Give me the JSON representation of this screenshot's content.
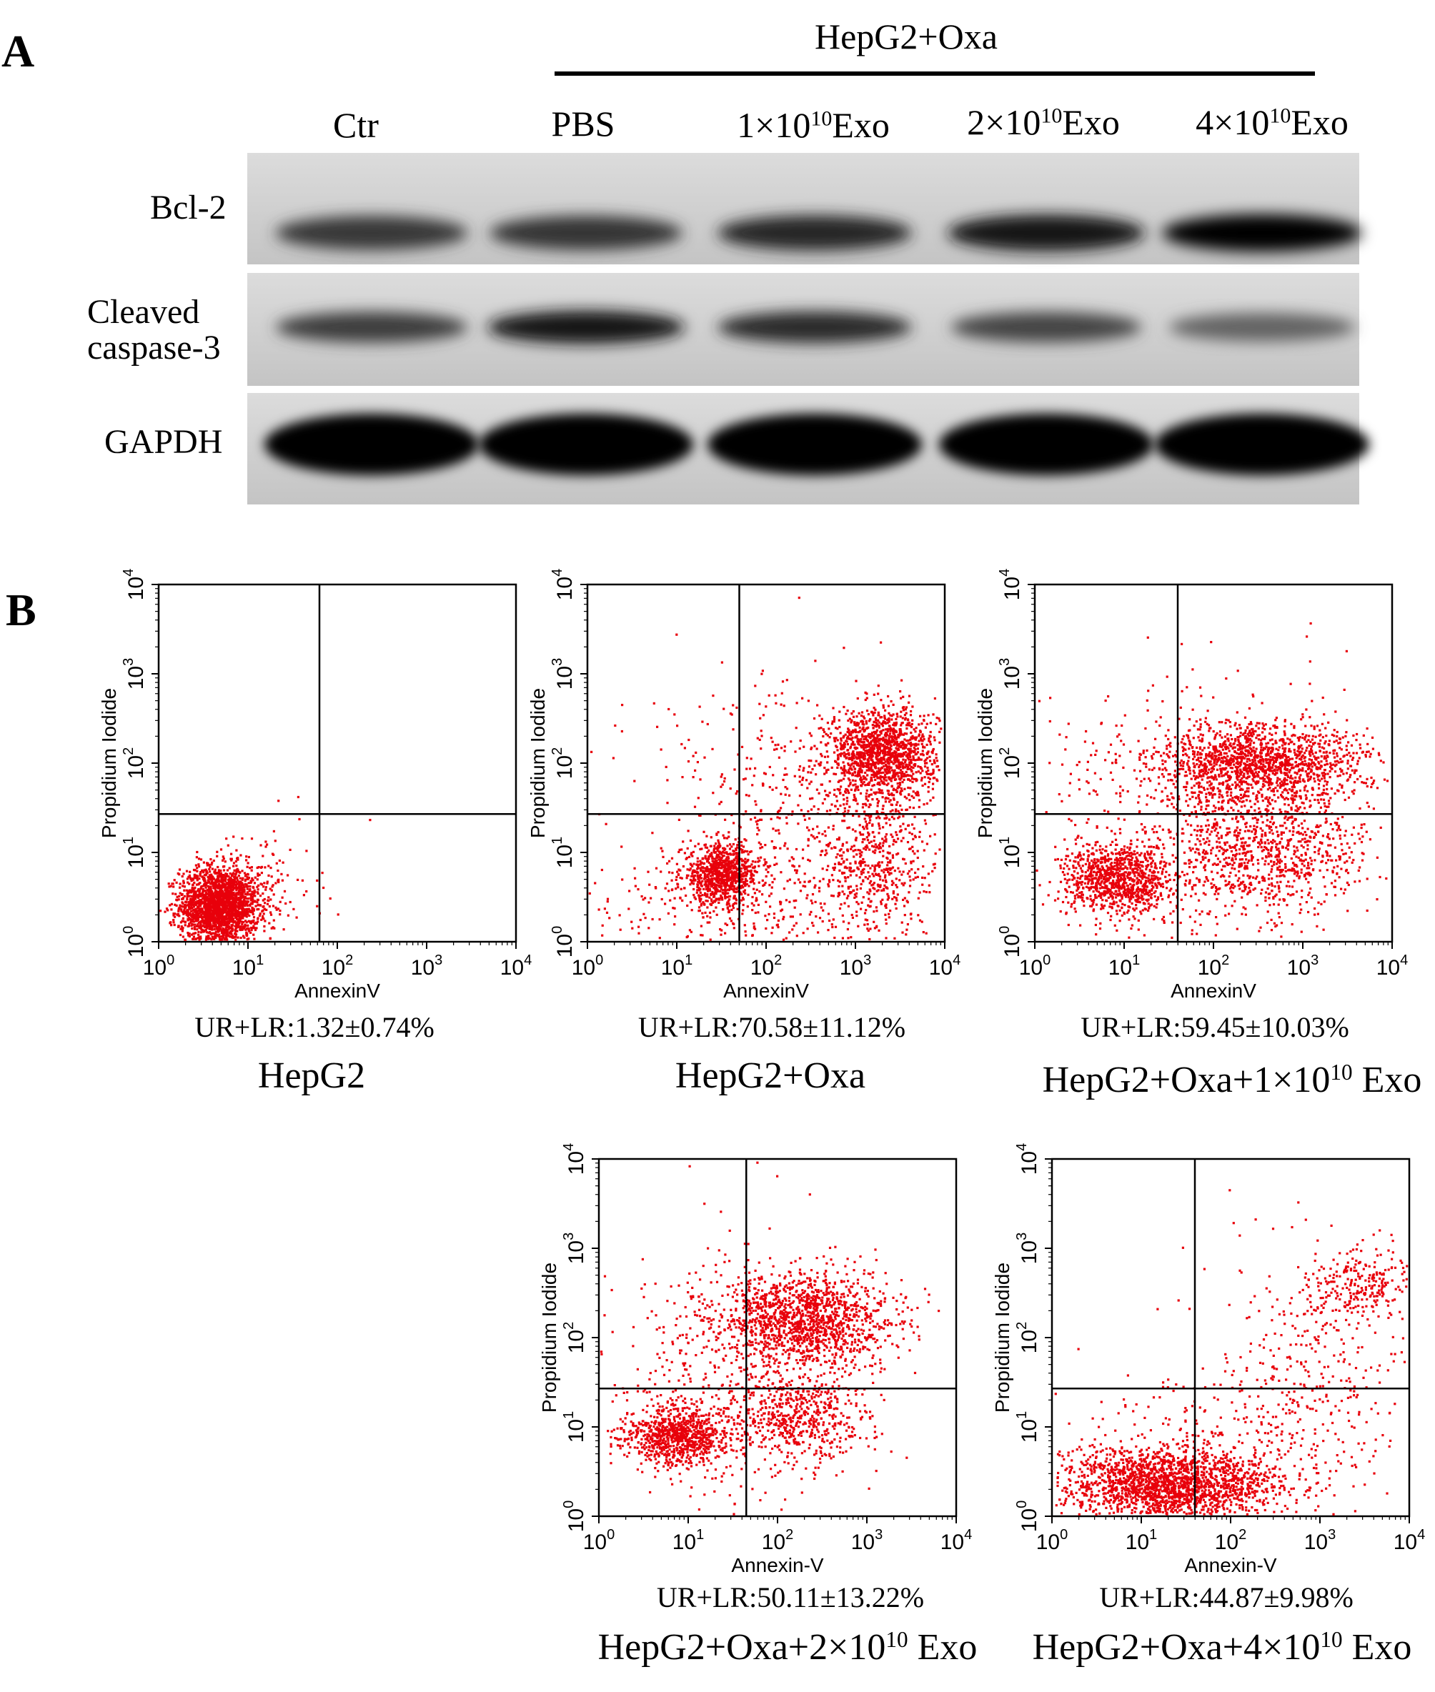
{
  "panel_a": {
    "letter": "A",
    "group_label": "HepG2+Oxa",
    "lanes": [
      {
        "prefix": "Ctr",
        "sup": "",
        "suffix": ""
      },
      {
        "prefix": "PBS",
        "sup": "",
        "suffix": ""
      },
      {
        "prefix": "1×10",
        "sup": "10",
        "suffix": "Exo"
      },
      {
        "prefix": "2×10",
        "sup": "10",
        "suffix": "Exo"
      },
      {
        "prefix": "4×10",
        "sup": "10",
        "suffix": "Exo"
      }
    ],
    "rows": [
      {
        "label": "Bcl-2",
        "band_intensity": [
          0.72,
          0.74,
          0.8,
          0.9,
          0.98
        ]
      },
      {
        "label_line1": "Cleaved",
        "label_line2": "caspase-3",
        "band_intensity": [
          0.7,
          0.9,
          0.78,
          0.66,
          0.5
        ]
      },
      {
        "label": "GAPDH",
        "band_intensity": [
          1.0,
          1.0,
          1.0,
          1.0,
          1.0
        ]
      }
    ]
  },
  "panel_b": {
    "letter": "B",
    "plots": [
      {
        "x_label": "AnnexinV",
        "y_label": "Propidium Iodide",
        "stat": "UR+LR:1.32±0.74%",
        "caption_prefix": "HepG2",
        "caption_sup": "",
        "caption_suffix": ""
      },
      {
        "x_label": "AnnexinV",
        "y_label": "Propidium Iodide",
        "stat": "UR+LR:70.58±11.12%",
        "caption_prefix": "HepG2+Oxa",
        "caption_sup": "",
        "caption_suffix": ""
      },
      {
        "x_label": "AnnexinV",
        "y_label": "Propidium Iodide",
        "stat": "UR+LR:59.45±10.03%",
        "caption_prefix": "HepG2+Oxa+1×10",
        "caption_sup": "10",
        "caption_suffix": " Exo"
      },
      {
        "x_label": "Annexin-V",
        "y_label": "Propidium Iodide",
        "stat": "UR+LR:50.11±13.22%",
        "caption_prefix": "HepG2+Oxa+2×10",
        "caption_sup": "10",
        "caption_suffix": " Exo"
      },
      {
        "x_label": "Annexin-V",
        "y_label": "Propidium Iodide",
        "stat": "UR+LR:44.87±9.98%",
        "caption_prefix": "HepG2+Oxa+4×10",
        "caption_sup": "10",
        "caption_suffix": " Exo"
      }
    ],
    "tick_base": "10",
    "tick_exps": [
      "0",
      "1",
      "2",
      "3",
      "4"
    ],
    "dot_color": "#e8000b"
  }
}
